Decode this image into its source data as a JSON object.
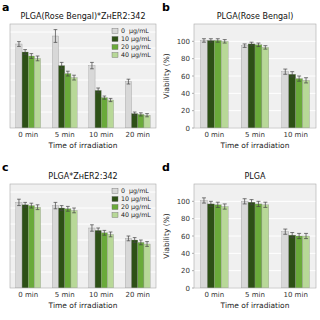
{
  "chart_data": [
    {
      "type": "bar",
      "title": "PLGA(Rose Bengal)*ZʜER2:342",
      "annotations": [
        "a"
      ],
      "x_label": "Time of irradiation",
      "categories": [
        "0 min",
        "5 min",
        "10 min",
        "20 min"
      ],
      "series": [
        {
          "name": "0  μg/mL",
          "color": "#d8d8d8",
          "values": [
            105,
            115,
            78,
            58
          ],
          "errors": [
            3,
            8,
            4,
            3
          ]
        },
        {
          "name": "10 μg/mL",
          "color": "#2d5016",
          "values": [
            95,
            78,
            47,
            18
          ],
          "errors": [
            3,
            4,
            3,
            2
          ]
        },
        {
          "name": "20 μg/mL",
          "color": "#6aaa3a",
          "values": [
            90,
            68,
            38,
            17
          ],
          "errors": [
            3,
            3,
            2,
            2
          ]
        },
        {
          "name": "40 μg/mL",
          "color": "#b8d898",
          "values": [
            87,
            63,
            35,
            16
          ],
          "errors": [
            3,
            3,
            2,
            2
          ]
        }
      ],
      "ylim": [
        0,
        130
      ],
      "yticks": [
        20,
        40,
        60,
        80,
        100,
        120
      ],
      "grid": true,
      "legend": "upper right",
      "tick_labels": "x"
    },
    {
      "type": "bar",
      "title": "PLGA(Rose Bengal)",
      "annotations": [
        "b"
      ],
      "x_label": "Time of irradiation",
      "y_label": "Viability (%)",
      "categories": [
        "0 min",
        "5 min",
        "10 min"
      ],
      "series": [
        {
          "name": "0  μg/mL",
          "color": "#d8d8d8",
          "values": [
            101,
            95,
            65
          ],
          "errors": [
            2,
            2,
            3
          ]
        },
        {
          "name": "10 μg/mL",
          "color": "#2d5016",
          "values": [
            101,
            97,
            62
          ],
          "errors": [
            2,
            2,
            3
          ]
        },
        {
          "name": "20 μg/mL",
          "color": "#6aaa3a",
          "values": [
            101,
            96,
            57
          ],
          "errors": [
            2,
            2,
            3
          ]
        },
        {
          "name": "40 μg/mL",
          "color": "#b8d898",
          "values": [
            100,
            93,
            55
          ],
          "errors": [
            2,
            2,
            3
          ]
        }
      ],
      "ylim": [
        0,
        120
      ],
      "yticks": [
        0,
        20,
        40,
        60,
        80,
        100
      ],
      "grid": true
    },
    {
      "type": "bar",
      "title": "PLGA*ZʜER2:342",
      "annotations": [
        "c"
      ],
      "x_label": "Time of irradiation",
      "categories": [
        "0 min",
        "5 min",
        "10 min",
        "20 min"
      ],
      "series": [
        {
          "name": "0  μg/mL",
          "color": "#d8d8d8",
          "values": [
            107,
            103,
            75,
            62
          ],
          "errors": [
            4,
            4,
            4,
            3
          ]
        },
        {
          "name": "10 μg/mL",
          "color": "#2d5016",
          "values": [
            104,
            100,
            72,
            60
          ],
          "errors": [
            3,
            3,
            3,
            3
          ]
        },
        {
          "name": "20 μg/mL",
          "color": "#6aaa3a",
          "values": [
            103,
            99,
            69,
            57
          ],
          "errors": [
            3,
            3,
            3,
            3
          ]
        },
        {
          "name": "40 μg/mL",
          "color": "#b8d898",
          "values": [
            101,
            97,
            67,
            55
          ],
          "errors": [
            3,
            3,
            3,
            3
          ]
        }
      ],
      "ylim": [
        0,
        130
      ],
      "yticks": [
        20,
        40,
        60,
        80,
        100,
        120
      ],
      "grid": true,
      "legend": "upper right",
      "tick_labels": "x"
    },
    {
      "type": "bar",
      "title": "PLGA",
      "annotations": [
        "d"
      ],
      "x_label": "Time of irradiation",
      "y_label": "Viability (%)",
      "categories": [
        "0 min",
        "5 min",
        "10 min"
      ],
      "series": [
        {
          "name": "0  μg/mL",
          "color": "#d8d8d8",
          "values": [
            101,
            100,
            65
          ],
          "errors": [
            3,
            3,
            3
          ]
        },
        {
          "name": "10 μg/mL",
          "color": "#2d5016",
          "values": [
            97,
            99,
            61
          ],
          "errors": [
            3,
            3,
            3
          ]
        },
        {
          "name": "20 μg/mL",
          "color": "#6aaa3a",
          "values": [
            96,
            97,
            60
          ],
          "errors": [
            3,
            3,
            3
          ]
        },
        {
          "name": "40 μg/mL",
          "color": "#b8d898",
          "values": [
            94,
            96,
            60
          ],
          "errors": [
            3,
            3,
            3
          ]
        }
      ],
      "ylim": [
        0,
        120
      ],
      "yticks": [
        0,
        20,
        40,
        60,
        80,
        100
      ],
      "grid": true
    }
  ]
}
